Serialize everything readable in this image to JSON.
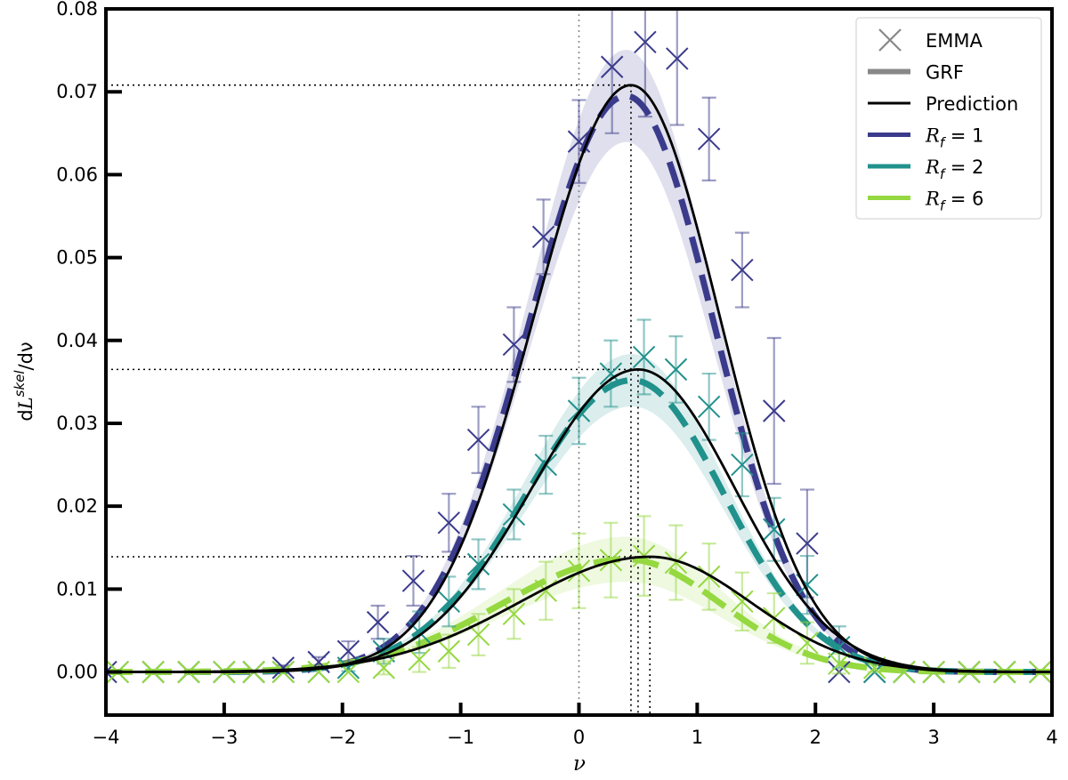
{
  "chart_data": {
    "type": "line",
    "xlabel": "ν",
    "ylabel_parts": {
      "prefix": "d",
      "L": "L",
      "sup": "skel",
      "suffix": "/dν"
    },
    "xlim": [
      -4,
      4
    ],
    "ylim": [
      -0.0052,
      0.08
    ],
    "x_ticks": [
      -4,
      -3,
      -2,
      -1,
      0,
      1,
      2,
      3,
      4
    ],
    "x_tick_labels": [
      "−4",
      "−3",
      "−2",
      "−1",
      "0",
      "1",
      "2",
      "3",
      "4"
    ],
    "y_ticks": [
      0.0,
      0.01,
      0.02,
      0.03,
      0.04,
      0.05,
      0.06,
      0.07,
      0.08
    ],
    "y_tick_labels": [
      "0.00",
      "0.01",
      "0.02",
      "0.03",
      "0.04",
      "0.05",
      "0.06",
      "0.07",
      "0.08"
    ],
    "legend": {
      "placement": "top-right",
      "entries": [
        {
          "key": "emma",
          "label": "EMMA"
        },
        {
          "key": "grf",
          "label": "GRF"
        },
        {
          "key": "prediction",
          "label": "Prediction"
        },
        {
          "key": "rf1",
          "label": "R",
          "sub": "f",
          "tail": " = 1"
        },
        {
          "key": "rf2",
          "label": "R",
          "sub": "f",
          "tail": " = 2"
        },
        {
          "key": "rf6",
          "label": "R",
          "sub": "f",
          "tail": " = 6"
        }
      ]
    },
    "reference_lines": {
      "mean_line_x": 0,
      "peaks": [
        {
          "x": 0.44,
          "y": 0.0708
        },
        {
          "x": 0.5,
          "y": 0.0365
        },
        {
          "x": 0.6,
          "y": 0.0139
        }
      ]
    },
    "series": [
      {
        "name": "R_f = 1",
        "color": "#3b3b8c",
        "prediction": {
          "amplitude": 0.0708,
          "peak_x": 0.44,
          "sigma_left": 0.82,
          "sigma_right": 0.75
        },
        "grf": {
          "amplitude": 0.0695,
          "peak_x": 0.4,
          "sigma_left": 0.82,
          "sigma_right": 0.74
        },
        "band_halfwidth_fraction": 0.08,
        "emma": {
          "x": [
            -4.0,
            -3.6,
            -3.3,
            -3.0,
            -2.75,
            -2.5,
            -2.2,
            -1.95,
            -1.7,
            -1.4,
            -1.1,
            -0.85,
            -0.55,
            -0.3,
            0.0,
            0.28,
            0.56,
            0.83,
            1.1,
            1.38,
            1.65,
            1.93,
            2.2,
            2.5,
            2.75,
            3.0,
            3.3,
            3.6,
            3.9
          ],
          "y": [
            0.0,
            0.0,
            0.0,
            0.0,
            0.0,
            0.0005,
            0.0012,
            0.0025,
            0.006,
            0.011,
            0.018,
            0.028,
            0.0395,
            0.0525,
            0.064,
            0.073,
            0.076,
            0.074,
            0.0643,
            0.0485,
            0.0315,
            0.0155,
            0.0,
            0.0,
            0.0,
            0.0,
            0.0,
            0.0,
            0.0
          ],
          "err": [
            0.0,
            0.0,
            0.0,
            0.0,
            0.0,
            0.0003,
            0.0006,
            0.0012,
            0.002,
            0.003,
            0.0035,
            0.004,
            0.0045,
            0.0045,
            0.005,
            0.008,
            0.009,
            0.008,
            0.005,
            0.0045,
            0.0088,
            0.0065,
            0.0,
            0.0,
            0.0,
            0.0,
            0.0,
            0.0,
            0.0
          ]
        }
      },
      {
        "name": "R_f = 2",
        "color": "#21918c",
        "prediction": {
          "amplitude": 0.0365,
          "peak_x": 0.5,
          "sigma_left": 0.9,
          "sigma_right": 0.82
        },
        "grf": {
          "amplitude": 0.0352,
          "peak_x": 0.45,
          "sigma_left": 0.9,
          "sigma_right": 0.78
        },
        "band_halfwidth_fraction": 0.09,
        "emma": {
          "x": [
            -3.9,
            -3.6,
            -3.3,
            -3.0,
            -2.75,
            -2.5,
            -2.2,
            -1.95,
            -1.65,
            -1.35,
            -1.1,
            -0.85,
            -0.55,
            -0.28,
            0.0,
            0.27,
            0.55,
            0.82,
            1.1,
            1.38,
            1.65,
            1.93,
            2.2,
            2.5,
            2.75,
            3.0,
            3.3,
            3.6,
            3.9
          ],
          "y": [
            0.0,
            0.0,
            0.0,
            0.0,
            0.0,
            0.0,
            0.0,
            0.0005,
            0.0025,
            0.0048,
            0.0085,
            0.013,
            0.019,
            0.025,
            0.0315,
            0.036,
            0.038,
            0.0365,
            0.032,
            0.025,
            0.0172,
            0.0105,
            0.003,
            0.0,
            0.0,
            0.0,
            0.0,
            0.0,
            0.0
          ],
          "err": [
            0.0,
            0.0,
            0.0,
            0.0,
            0.0,
            0.0,
            0.0,
            0.0004,
            0.0015,
            0.0025,
            0.003,
            0.003,
            0.003,
            0.0035,
            0.004,
            0.004,
            0.0045,
            0.004,
            0.004,
            0.0038,
            0.0038,
            0.0035,
            0.0025,
            0.0,
            0.0,
            0.0,
            0.0,
            0.0,
            0.0
          ]
        }
      },
      {
        "name": "R_f = 6",
        "color": "#95d840",
        "prediction": {
          "amplitude": 0.0139,
          "peak_x": 0.6,
          "sigma_left": 1.1,
          "sigma_right": 0.85
        },
        "grf": {
          "amplitude": 0.0136,
          "peak_x": 0.4,
          "sigma_left": 1.05,
          "sigma_right": 0.8
        },
        "band_halfwidth_fraction": 0.2,
        "emma": {
          "x": [
            -3.9,
            -3.6,
            -3.3,
            -3.0,
            -2.75,
            -2.5,
            -2.2,
            -1.95,
            -1.65,
            -1.35,
            -1.1,
            -0.85,
            -0.55,
            -0.28,
            0.0,
            0.27,
            0.55,
            0.82,
            1.1,
            1.38,
            1.65,
            1.93,
            2.2,
            2.5,
            2.75,
            3.0,
            3.3,
            3.6,
            3.9
          ],
          "y": [
            0.0,
            0.0,
            0.0,
            0.0,
            0.0,
            0.0,
            0.0,
            0.0,
            0.0005,
            0.0015,
            0.0025,
            0.0045,
            0.007,
            0.0098,
            0.0122,
            0.0135,
            0.014,
            0.0132,
            0.0115,
            0.0085,
            0.0065,
            0.0035,
            0.001,
            0.0005,
            0.0,
            0.0,
            0.0,
            0.0,
            0.0
          ],
          "err": [
            0.0,
            0.0,
            0.0,
            0.0,
            0.0,
            0.0,
            0.0,
            0.0,
            0.0008,
            0.0015,
            0.002,
            0.0025,
            0.003,
            0.0035,
            0.0045,
            0.0045,
            0.0048,
            0.0045,
            0.004,
            0.0035,
            0.003,
            0.0025,
            0.0012,
            0.0005,
            0.0,
            0.0,
            0.0,
            0.0,
            0.0
          ]
        }
      }
    ]
  }
}
